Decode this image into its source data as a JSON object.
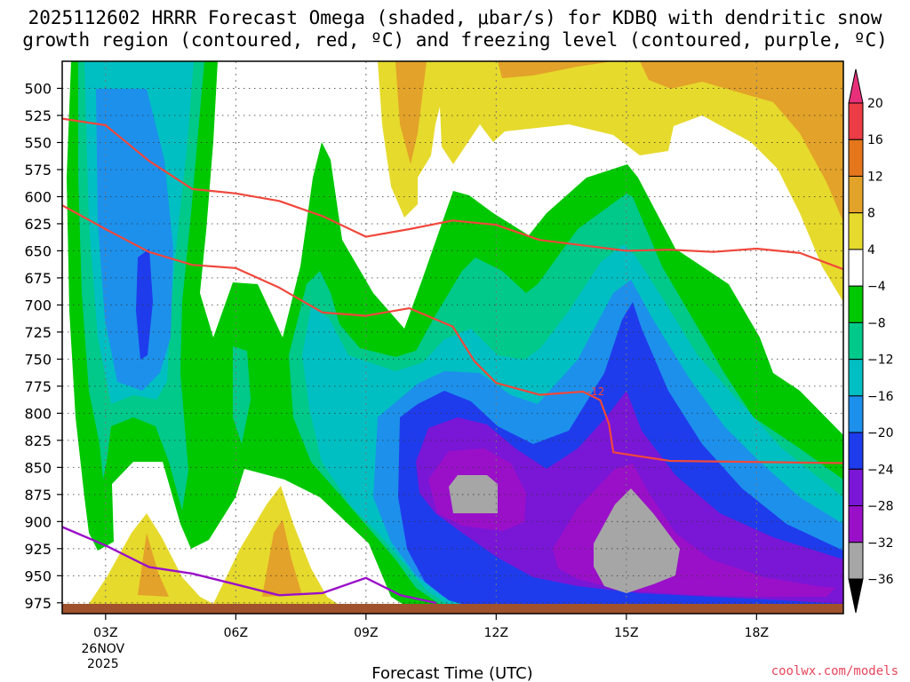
{
  "title_lines": [
    "2025112602 HRRR Forecast Omega (shaded, μbar/s) for KDBQ with dendritic snow",
    "growth region (contoured, red, ºC) and freezing level (contoured, purple, ºC)"
  ],
  "credit": "coolwx.com/models",
  "credit_color": "#e8455a",
  "chart_data": {
    "type": "time-height contour",
    "title": "2025112602 HRRR Forecast Omega (shaded, μbar/s) for KDBQ with dendritic snow growth region (contoured, red, ºC) and freezing level (contoured, purple, ºC)",
    "xlabel": "Forecast Time (UTC)",
    "ylabel": "",
    "xlim": [
      2,
      20
    ],
    "ylim": [
      985,
      475
    ],
    "x_ticks": [
      {
        "hour": 3,
        "label": "03Z",
        "date_label": [
          "26NOV",
          "2025"
        ]
      },
      {
        "hour": 6,
        "label": "06Z"
      },
      {
        "hour": 9,
        "label": "09Z"
      },
      {
        "hour": 12,
        "label": "12Z"
      },
      {
        "hour": 15,
        "label": "15Z"
      },
      {
        "hour": 18,
        "label": "18Z"
      }
    ],
    "y_ticks": [
      500,
      525,
      550,
      575,
      600,
      625,
      650,
      675,
      700,
      725,
      750,
      775,
      800,
      825,
      850,
      875,
      900,
      925,
      950,
      975
    ],
    "colorbar": {
      "labels": [
        "20",
        "16",
        "12",
        "8",
        "4",
        "−4",
        "−8",
        "−12",
        "−16",
        "−20",
        "−24",
        "−28",
        "−32",
        "−36"
      ],
      "bins": [
        {
          "color": "#e8307a"
        },
        {
          "color": "#ec3c46"
        },
        {
          "color": "#e6761c"
        },
        {
          "color": "#e3a229"
        },
        {
          "color": "#e6da2c"
        },
        {
          "color": "#ffffff"
        },
        {
          "color": "#00c800"
        },
        {
          "color": "#00c98a"
        },
        {
          "color": "#00bfc2"
        },
        {
          "color": "#1d90ec"
        },
        {
          "color": "#1e3cec"
        },
        {
          "color": "#7a16d6"
        },
        {
          "color": "#9a10c8"
        },
        {
          "color": "#a6a6a6"
        },
        {
          "color": "#000000"
        }
      ]
    },
    "ground_color": "#a0522d",
    "contours": {
      "dendritic_minus12": {
        "color": "#f0483c",
        "label": "-12",
        "points": [
          [
            2,
            608
          ],
          [
            3,
            630
          ],
          [
            4,
            651
          ],
          [
            5,
            663
          ],
          [
            6,
            666
          ],
          [
            7,
            684
          ],
          [
            8,
            707
          ],
          [
            9,
            710
          ],
          [
            10,
            703
          ],
          [
            11,
            720
          ],
          [
            11.5,
            752
          ],
          [
            12,
            772
          ],
          [
            13,
            783
          ],
          [
            14,
            780
          ],
          [
            14.4,
            788
          ],
          [
            14.6,
            810
          ],
          [
            14.7,
            836
          ],
          [
            16,
            844
          ],
          [
            20,
            846
          ]
        ]
      },
      "dendritic_minus18": {
        "color": "#f0483c",
        "points": [
          [
            2,
            528
          ],
          [
            3,
            534
          ],
          [
            4,
            567
          ],
          [
            5,
            593
          ],
          [
            6,
            597
          ],
          [
            7,
            604
          ],
          [
            8,
            618
          ],
          [
            9,
            637
          ],
          [
            10,
            630
          ],
          [
            11,
            622
          ],
          [
            12,
            626
          ],
          [
            13,
            640
          ],
          [
            14,
            645
          ],
          [
            15,
            650
          ],
          [
            16,
            649
          ],
          [
            17,
            651
          ],
          [
            18,
            648
          ],
          [
            19,
            652
          ],
          [
            20,
            667
          ]
        ]
      },
      "freezing_level_0": {
        "color": "#9a10c8",
        "points": [
          [
            2,
            905
          ],
          [
            3,
            922
          ],
          [
            4,
            942
          ],
          [
            5,
            948
          ],
          [
            6,
            958
          ],
          [
            7,
            968
          ],
          [
            8,
            966
          ],
          [
            9,
            952
          ],
          [
            9.8,
            968
          ],
          [
            10.6,
            975
          ]
        ]
      }
    },
    "shaded_regions_description": "Omega shading by forecast hour and pressure: strongest rising motion (-24 to -36 μbar/s, purple and gray) centred near 11-12Z 825-875 hPa and 15Z 875-925 hPa; weak sinking (+4 to +12, yellow/orange) near 04Z and 07Z at 875-950 hPa and in the upper levels after 09Z."
  },
  "colors": {
    "white": "#ffffff",
    "green": "#00c800",
    "teal": "#00c98a",
    "cyan": "#00bfc2",
    "lightblue": "#1d90ec",
    "blue": "#1e3cec",
    "violet": "#7a16d6",
    "purple": "#9a10c8",
    "gray": "#a6a6a6",
    "yellow": "#e6da2c",
    "gold": "#e3a229"
  }
}
